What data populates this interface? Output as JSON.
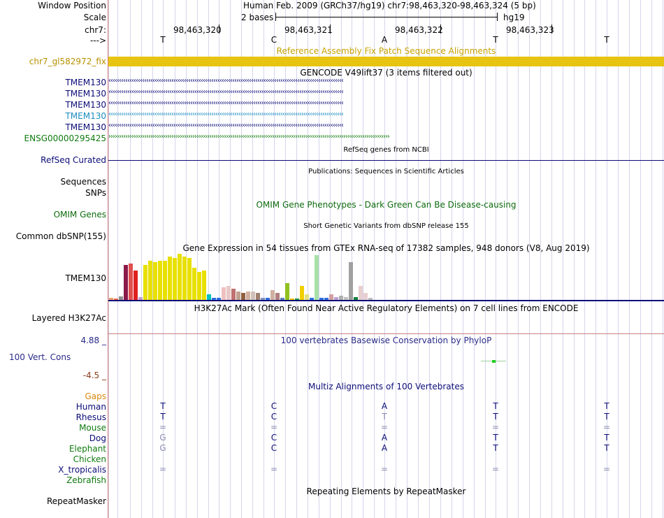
{
  "header": {
    "window_position_label": "Window Position",
    "window_position_value": "Human Feb. 2009 (GRCh37/hg19)   chr7:98,463,320-98,463,324 (5 bp)",
    "scale_label": "Scale",
    "scale_value": "2 bases",
    "scale_assembly": "hg19",
    "chrom_label": "chr7:",
    "coords": [
      "98,463,320",
      "98,463,321",
      "98,463,322",
      "98,463,323"
    ],
    "strand_label": "--->",
    "bases": [
      "T",
      "C",
      "A",
      "T",
      "T"
    ]
  },
  "tracks": {
    "fix_patch": {
      "title": "Reference Assembly Fix Patch Sequence Alignments",
      "label": "chr7_gl582972_fix",
      "color": "#e8c412"
    },
    "gencode": {
      "title": "GENCODE V49lift37 (3 items filtered out)",
      "items": [
        {
          "label": "TMEM130",
          "color": "#0c0c78",
          "arrows": "‹‹‹‹‹‹‹‹‹‹‹‹‹‹‹‹‹‹‹‹‹‹‹‹‹‹‹‹‹‹‹‹‹‹‹‹‹‹‹‹‹‹‹‹‹‹‹‹‹‹‹‹‹‹‹‹‹‹‹‹‹‹‹‹‹‹‹‹‹‹‹‹‹‹‹‹‹‹‹‹‹‹‹‹‹‹‹‹‹‹‹‹‹‹‹‹‹‹‹‹‹‹‹‹‹‹‹‹‹‹‹‹"
        },
        {
          "label": "TMEM130",
          "color": "#0c0c78",
          "arrows": "‹‹‹‹‹‹‹‹‹‹‹‹‹‹‹‹‹‹‹‹‹‹‹‹‹‹‹‹‹‹‹‹‹‹‹‹‹‹‹‹‹‹‹‹‹‹‹‹‹‹‹‹‹‹‹‹‹‹‹‹‹‹‹‹‹‹‹‹‹‹‹‹‹‹‹‹‹‹‹‹‹‹‹‹‹‹‹‹‹‹‹‹‹‹‹‹‹‹‹‹‹‹‹‹‹‹‹‹‹‹‹‹"
        },
        {
          "label": "TMEM130",
          "color": "#0c0c78",
          "arrows": "‹‹‹‹‹‹‹‹‹‹‹‹‹‹‹‹‹‹‹‹‹‹‹‹‹‹‹‹‹‹‹‹‹‹‹‹‹‹‹‹‹‹‹‹‹‹‹‹‹‹‹‹‹‹‹‹‹‹‹‹‹‹‹‹‹‹‹‹‹‹‹‹‹‹‹‹‹‹‹‹‹‹‹‹‹‹‹‹‹‹‹‹‹‹‹‹‹‹‹‹‹‹‹‹‹‹‹‹‹‹‹‹"
        },
        {
          "label": "TMEM130",
          "color": "#1a8cbf",
          "arrows": "‹‹‹‹‹‹‹‹‹‹‹‹‹‹‹‹‹‹‹‹‹‹‹‹‹‹‹‹‹‹‹‹‹‹‹‹‹‹‹‹‹‹‹‹‹‹‹‹‹‹‹‹‹‹‹‹‹‹‹‹‹‹‹‹‹‹‹‹‹‹‹‹‹‹‹‹‹‹‹‹‹‹‹‹‹‹‹‹‹‹‹‹‹‹‹‹‹‹‹‹‹‹‹‹‹‹‹‹‹‹‹‹"
        },
        {
          "label": "TMEM130",
          "color": "#0c0c78",
          "arrows": "‹‹‹‹‹‹‹‹‹‹‹‹‹‹‹‹‹‹‹‹‹‹‹‹‹‹‹‹‹‹‹‹‹‹‹‹‹‹‹‹‹‹‹‹‹‹‹‹‹‹‹‹‹‹‹‹‹‹‹‹‹‹‹‹‹‹‹‹‹‹‹‹‹‹‹‹‹‹‹‹‹‹‹‹‹‹‹‹‹‹‹‹‹‹‹‹‹‹‹‹‹‹‹‹‹‹‹‹‹‹‹‹"
        },
        {
          "label": "ENSG00000295425",
          "color": "#107a10",
          "arrows": "››››››››››››››››››››››››››››››››››››››››››››››››››››››››››››››››››››››››››››››››››››››››››››››››››››››››››››››››››››››››››››››››››››››"
        }
      ]
    },
    "refseq": {
      "title": "RefSeq genes from NCBI",
      "label": "RefSeq Curated",
      "color": "#0c0c78"
    },
    "publications": {
      "title": "Publications: Sequences in Scientific Articles",
      "label": "Sequences",
      "label2": "SNPs"
    },
    "omim": {
      "title": "OMIM Gene Phenotypes - Dark Green Can Be Disease-causing",
      "label": "OMIM Genes",
      "color": "#0d6b0d"
    },
    "dbsnp": {
      "title": "Short Genetic Variants from dbSNP release 155",
      "label": "Common dbSNP(155)"
    },
    "gtex": {
      "title": "Gene Expression in 54 tissues from GTEx RNA-seq of 17382 samples, 948 donors (V8, Aug 2019)",
      "label": "TMEM130"
    },
    "h3k27ac": {
      "title": "H3K27Ac Mark (Often Found Near Active Regulatory Elements) on 7 cell lines from ENCODE",
      "label": "Layered H3K27Ac"
    },
    "phylop": {
      "title": "100 vertebrates Basewise Conservation by PhyloP",
      "label": "100 Vert. Cons",
      "max": "4.88 _",
      "min": "-4.5 _",
      "color": "#2a2a8a",
      "min_color": "#8b3a1a"
    },
    "multiz": {
      "title": "Multiz Alignments of 100 Vertebrates",
      "gaps_label": "Gaps",
      "species": [
        {
          "name": "Human",
          "color": "#0c0c78",
          "bases": [
            "T",
            "C",
            "A",
            "T",
            "T"
          ]
        },
        {
          "name": "Rhesus",
          "color": "#0c0c78",
          "bases": [
            "T",
            "C",
            "T",
            "T",
            "T"
          ]
        },
        {
          "name": "Mouse",
          "color": "#107a10",
          "bases": [
            "=",
            "=",
            "=",
            "=",
            "="
          ]
        },
        {
          "name": "Dog",
          "color": "#0c0c78",
          "bases": [
            "G",
            "C",
            "A",
            "T",
            "T"
          ]
        },
        {
          "name": "Elephant",
          "color": "#107a10",
          "bases": [
            "G",
            "C",
            "A",
            "T",
            "T"
          ]
        },
        {
          "name": "Chicken",
          "color": "#107a10",
          "bases": [
            "",
            "",
            "",
            "",
            ""
          ]
        },
        {
          "name": "X_tropicalis",
          "color": "#0c0c78",
          "bases": [
            "=",
            "=",
            "=",
            "=",
            "="
          ]
        },
        {
          "name": "Zebrafish",
          "color": "#107a10",
          "bases": [
            "",
            "",
            "",
            "",
            ""
          ]
        }
      ]
    },
    "repeatmasker": {
      "title": "Repeating Elements by RepeatMasker",
      "label": "RepeatMasker"
    }
  }
}
